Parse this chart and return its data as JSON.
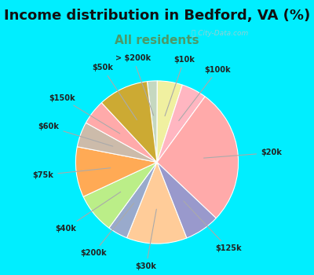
{
  "title": "Income distribution in Bedford, VA (%)",
  "subtitle": "All residents",
  "title_color": "#111111",
  "subtitle_color": "#4a9a6a",
  "background_color": "#00EEFF",
  "chart_bg_color": "#e0f5e8",
  "labels": [
    "> $200k",
    "$10k",
    "$100k",
    "$20k",
    "$125k",
    "$30k",
    "$200k",
    "$40k",
    "$75k",
    "$60k",
    "$150k",
    "$50k"
  ],
  "values": [
    2,
    5,
    5,
    27,
    7,
    12,
    4,
    8,
    10,
    5,
    5,
    10
  ],
  "colors": [
    "#c5d8c0",
    "#f0f0a0",
    "#ffb6c1",
    "#ffaaaa",
    "#9999cc",
    "#ffcc99",
    "#99aacc",
    "#bbee88",
    "#ffaa55",
    "#ccbbaa",
    "#ffaaaa",
    "#ccaa33"
  ],
  "start_angle": 97,
  "label_fontsize": 7,
  "title_fontsize": 13,
  "subtitle_fontsize": 11
}
